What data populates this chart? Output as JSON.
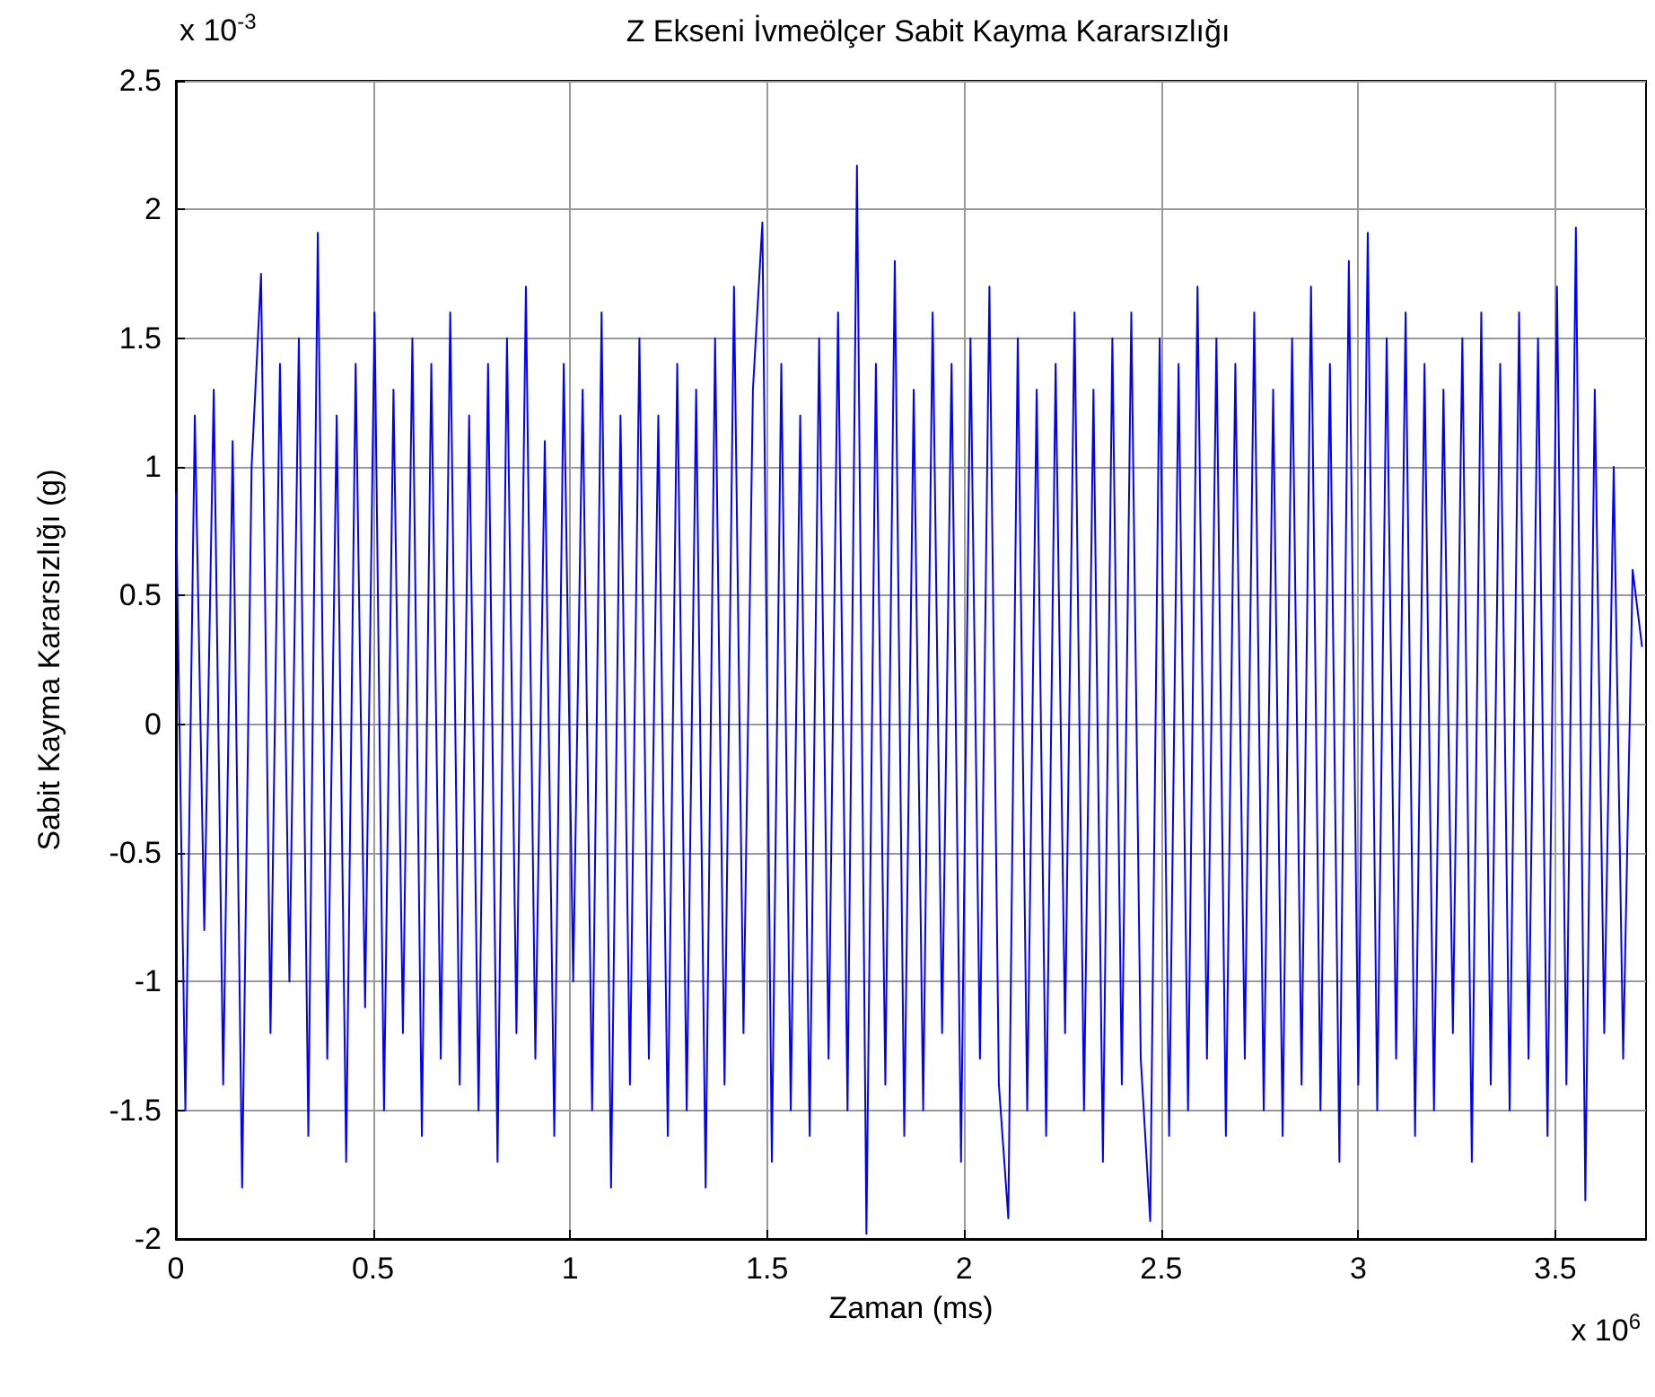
{
  "chart_data": {
    "type": "line",
    "title": "Z Ekseni İvmeölçer Sabit Kayma Kararsızlığı",
    "xlabel": "Zaman (ms)",
    "ylabel": "Sabit Kayma Kararsızlığı (g)",
    "annotations": [
      "x 10$^{-3}$",
      "x 10$^{6}$"
    ],
    "xlim": [
      0,
      3.73
    ],
    "ylim": [
      -2,
      2.5
    ],
    "xticks": [
      0,
      0.5,
      1,
      1.5,
      2,
      2.5,
      3,
      3.5
    ],
    "yticks": [
      -2,
      -1.5,
      -1,
      -0.5,
      0,
      0.5,
      1,
      1.5,
      2,
      2.5
    ],
    "grid": true,
    "marker": "none",
    "line_style": "solid",
    "series": [
      {
        "color": "#0000ff",
        "x": [
          0,
          0.024,
          0.048,
          0.072,
          0.096,
          0.12,
          0.144,
          0.168,
          0.192,
          0.216,
          0.24,
          0.264,
          0.288,
          0.312,
          0.336,
          0.36,
          0.384,
          0.408,
          0.432,
          0.456,
          0.48,
          0.504,
          0.528,
          0.552,
          0.576,
          0.6,
          0.624,
          0.648,
          0.672,
          0.696,
          0.72,
          0.744,
          0.768,
          0.792,
          0.816,
          0.84,
          0.864,
          0.888,
          0.912,
          0.936,
          0.96,
          0.984,
          1.008,
          1.032,
          1.056,
          1.08,
          1.104,
          1.128,
          1.152,
          1.176,
          1.2,
          1.224,
          1.248,
          1.272,
          1.296,
          1.32,
          1.344,
          1.368,
          1.392,
          1.416,
          1.44,
          1.464,
          1.488,
          1.512,
          1.536,
          1.56,
          1.584,
          1.608,
          1.632,
          1.656,
          1.68,
          1.704,
          1.728,
          1.752,
          1.776,
          1.8,
          1.824,
          1.848,
          1.872,
          1.896,
          1.92,
          1.944,
          1.968,
          1.992,
          2.016,
          2.04,
          2.064,
          2.088,
          2.112,
          2.136,
          2.16,
          2.184,
          2.208,
          2.232,
          2.256,
          2.28,
          2.304,
          2.328,
          2.352,
          2.376,
          2.4,
          2.424,
          2.448,
          2.472,
          2.496,
          2.52,
          2.544,
          2.568,
          2.592,
          2.616,
          2.64,
          2.664,
          2.688,
          2.712,
          2.736,
          2.76,
          2.784,
          2.808,
          2.832,
          2.856,
          2.88,
          2.904,
          2.928,
          2.952,
          2.976,
          3,
          3.024,
          3.048,
          3.072,
          3.096,
          3.12,
          3.144,
          3.168,
          3.192,
          3.216,
          3.24,
          3.264,
          3.288,
          3.312,
          3.336,
          3.36,
          3.384,
          3.408,
          3.432,
          3.456,
          3.48,
          3.504,
          3.528,
          3.552,
          3.576,
          3.6,
          3.624,
          3.648,
          3.672,
          3.696,
          3.72
        ],
        "values": [
          0.9,
          -1.5,
          1.2,
          -0.8,
          1.3,
          -1.4,
          1.1,
          -1.8,
          1,
          1.75,
          -1.2,
          1.4,
          -1,
          1.5,
          -1.6,
          1.91,
          -1.3,
          1.2,
          -1.7,
          1.4,
          -1.1,
          1.6,
          -1.5,
          1.3,
          -1.2,
          1.5,
          -1.6,
          1.4,
          -1.3,
          1.6,
          -1.4,
          1.2,
          -1.5,
          1.4,
          -1.7,
          1.5,
          -1.2,
          1.7,
          -1.3,
          1.1,
          -1.6,
          1.4,
          -1,
          1.3,
          -1.5,
          1.6,
          -1.8,
          1.2,
          -1.4,
          1.5,
          -1.3,
          1.2,
          -1.6,
          1.4,
          -1.5,
          1.3,
          -1.8,
          1.5,
          -1.4,
          1.7,
          -1.2,
          1.3,
          1.95,
          -1.7,
          1.4,
          -1.5,
          1.2,
          -1.6,
          1.5,
          -1.3,
          1.6,
          -1.5,
          2.17,
          -1.98,
          1.4,
          -1.4,
          1.8,
          -1.6,
          1.3,
          -1.5,
          1.6,
          -1.2,
          1.4,
          -1.7,
          1.5,
          -1.3,
          1.7,
          -1.4,
          -1.92,
          1.5,
          -1.5,
          1.3,
          -1.6,
          1.4,
          -1.2,
          1.6,
          -1.5,
          1.3,
          -1.7,
          1.5,
          -1.4,
          1.6,
          -1.3,
          -1.93,
          1.5,
          -1.6,
          1.4,
          -1.5,
          1.7,
          -1.3,
          1.5,
          -1.6,
          1.4,
          -1.3,
          1.6,
          -1.5,
          1.3,
          -1.6,
          1.5,
          -1.4,
          1.7,
          -1.5,
          1.4,
          -1.7,
          1.8,
          -1.4,
          1.91,
          -1.5,
          1.5,
          -1.3,
          1.6,
          -1.6,
          1.4,
          -1.5,
          1.3,
          -1.2,
          1.5,
          -1.7,
          1.6,
          -1.4,
          1.4,
          -1.5,
          1.6,
          -1.3,
          1.5,
          -1.6,
          1.7,
          -1.4,
          1.93,
          -1.85,
          1.3,
          -1.2,
          1,
          -1.3,
          0.6,
          0.3
        ]
      }
    ]
  }
}
